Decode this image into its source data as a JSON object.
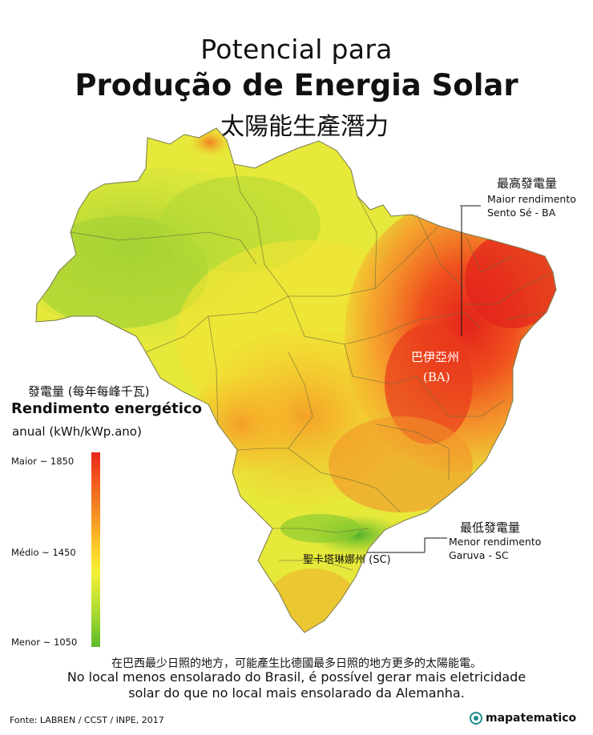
{
  "title": {
    "line1": "Potencial para",
    "line2": "Produção de Energia Solar",
    "zh": "太陽能生產潛力"
  },
  "annotations": {
    "max": {
      "zh": "最高發電量",
      "pt1": "Maior rendimento",
      "pt2": "Sento Sé - BA"
    },
    "min": {
      "zh": "最低發電量",
      "pt1": "Menor rendimento",
      "pt2": "Garuva - SC"
    },
    "ba": {
      "zh": "巴伊亞州",
      "abbr": "(BA)"
    },
    "sc": {
      "label": "聖卡塔琳娜州 (SC)"
    }
  },
  "legend": {
    "zh": "發電量 (每年每峰千瓦)",
    "title": "Rendimento energético",
    "unit": "anual (kWh/kWp.ano)",
    "max_label": "Maior ~ 1850",
    "mid_label": "Médio ~ 1450",
    "min_label": "Menor ~ 1050",
    "scale": {
      "max": 1850,
      "mid": 1450,
      "min": 1050
    },
    "colors": {
      "high": "#e8261c",
      "mid": "#fdd52b",
      "low": "#5dbb2b"
    }
  },
  "footer": {
    "zh": "在巴西最少日照的地方，可能產生比德國最多日照的地方更多的太陽能電。",
    "pt1": "No local menos ensolarado do Brasil, é possível gerar mais eletricidade",
    "pt2": "solar do que no local mais ensolarado da Alemanha.",
    "source": "Fonte: LABREN / CCST / INPE, 2017",
    "brand": "mapatematico"
  }
}
